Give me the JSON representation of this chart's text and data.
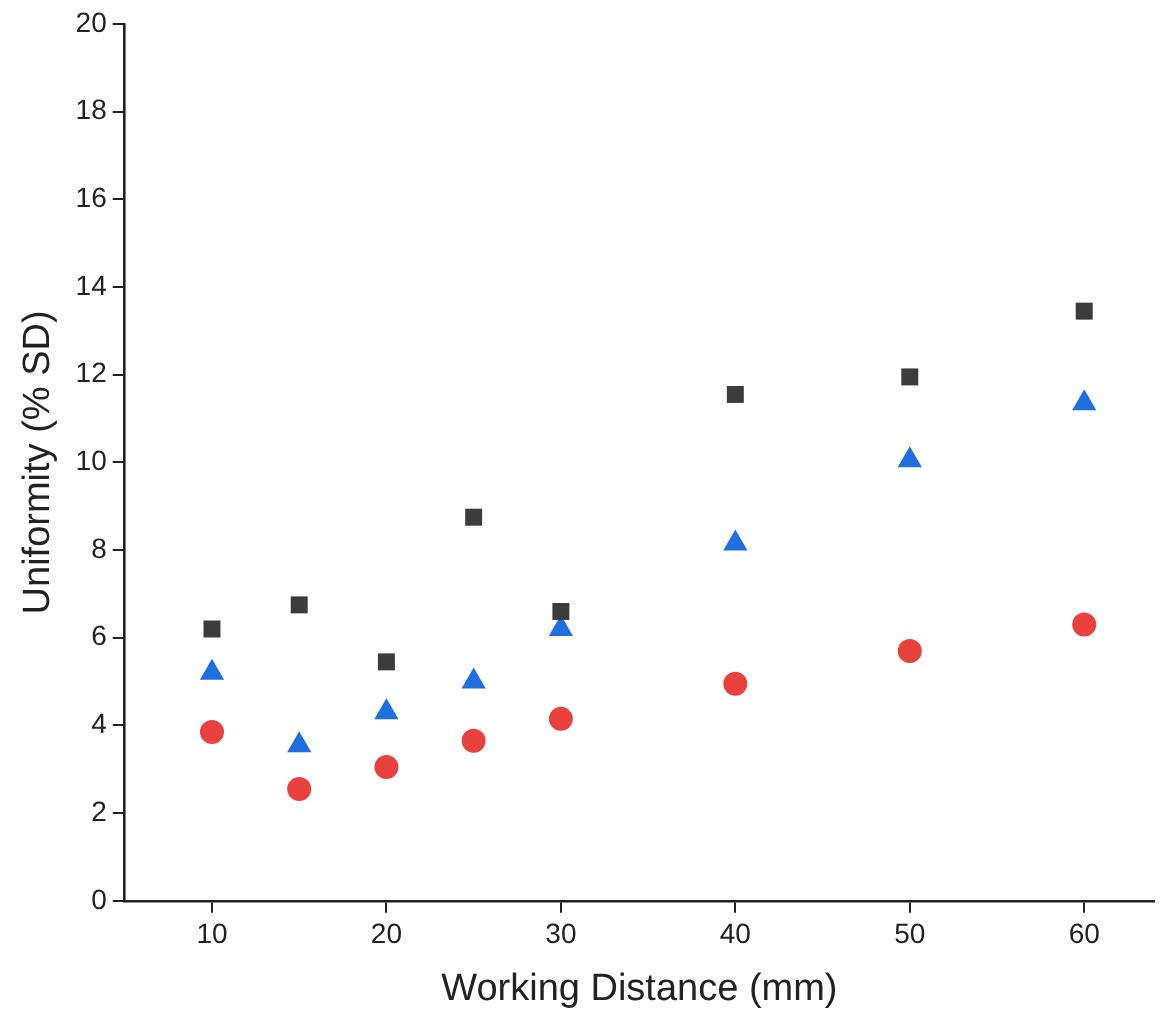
{
  "chart_data": {
    "type": "scatter",
    "xlabel": "Working Distance (mm)",
    "ylabel": "Uniformity (% SD)",
    "x": [
      10,
      15,
      20,
      25,
      30,
      40,
      50,
      60
    ],
    "series": [
      {
        "color": "#3c3c3c",
        "marker": "square",
        "values": [
          6.2,
          6.75,
          5.45,
          8.75,
          6.6,
          11.55,
          11.95,
          13.45
        ]
      },
      {
        "color": "#1f6fe0",
        "marker": "triangle",
        "values": [
          5.2,
          3.55,
          4.3,
          5.0,
          6.2,
          8.15,
          10.05,
          11.35
        ]
      },
      {
        "color": "#e8413e",
        "marker": "circle",
        "values": [
          3.85,
          2.55,
          3.05,
          3.65,
          4.15,
          4.95,
          5.7,
          6.3
        ]
      }
    ],
    "xlim": [
      5,
      64
    ],
    "xticks": [
      10,
      20,
      30,
      40,
      50,
      60
    ],
    "ylim": [
      0,
      20
    ],
    "yticks": [
      0,
      2,
      4,
      6,
      8,
      10,
      12,
      14,
      16,
      18,
      20
    ],
    "grid": false,
    "legend": false
  }
}
